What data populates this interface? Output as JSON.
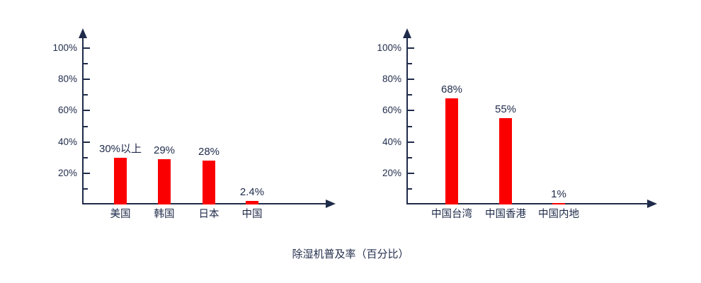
{
  "caption": "除湿机普及率（百分比）",
  "colors": {
    "bar": "#fa0000",
    "axis": "#1f2b4a",
    "text": "#1f2b4a"
  },
  "chart_data": [
    {
      "type": "bar",
      "title": "",
      "xlabel": "",
      "ylabel": "",
      "categories": [
        "美国",
        "韩国",
        "日本",
        "中国"
      ],
      "values": [
        30,
        29,
        28,
        2.4
      ],
      "value_labels": [
        "30%以上",
        "29%",
        "28%",
        "2.4%"
      ],
      "ylim": [
        0,
        110
      ],
      "y_major_ticks": [
        20,
        40,
        60,
        80,
        100
      ],
      "y_tick_labels": [
        "20%",
        "40%",
        "60%",
        "80%",
        "100%"
      ],
      "y_minor_ticks": [
        10,
        30,
        50,
        70,
        90
      ],
      "grid": false,
      "legend": "none",
      "bar_color": "#fa0000"
    },
    {
      "type": "bar",
      "title": "",
      "xlabel": "",
      "ylabel": "",
      "categories": [
        "中国台湾",
        "中国香港",
        "中国内地"
      ],
      "values": [
        68,
        55,
        1
      ],
      "value_labels": [
        "68%",
        "55%",
        "1%"
      ],
      "ylim": [
        0,
        110
      ],
      "y_major_ticks": [
        20,
        40,
        60,
        80,
        100
      ],
      "y_tick_labels": [
        "20%",
        "40%",
        "60%",
        "80%",
        "100%"
      ],
      "y_minor_ticks": [
        10,
        30,
        50,
        70,
        90
      ],
      "grid": false,
      "legend": "none",
      "bar_color": "#fa0000"
    }
  ]
}
